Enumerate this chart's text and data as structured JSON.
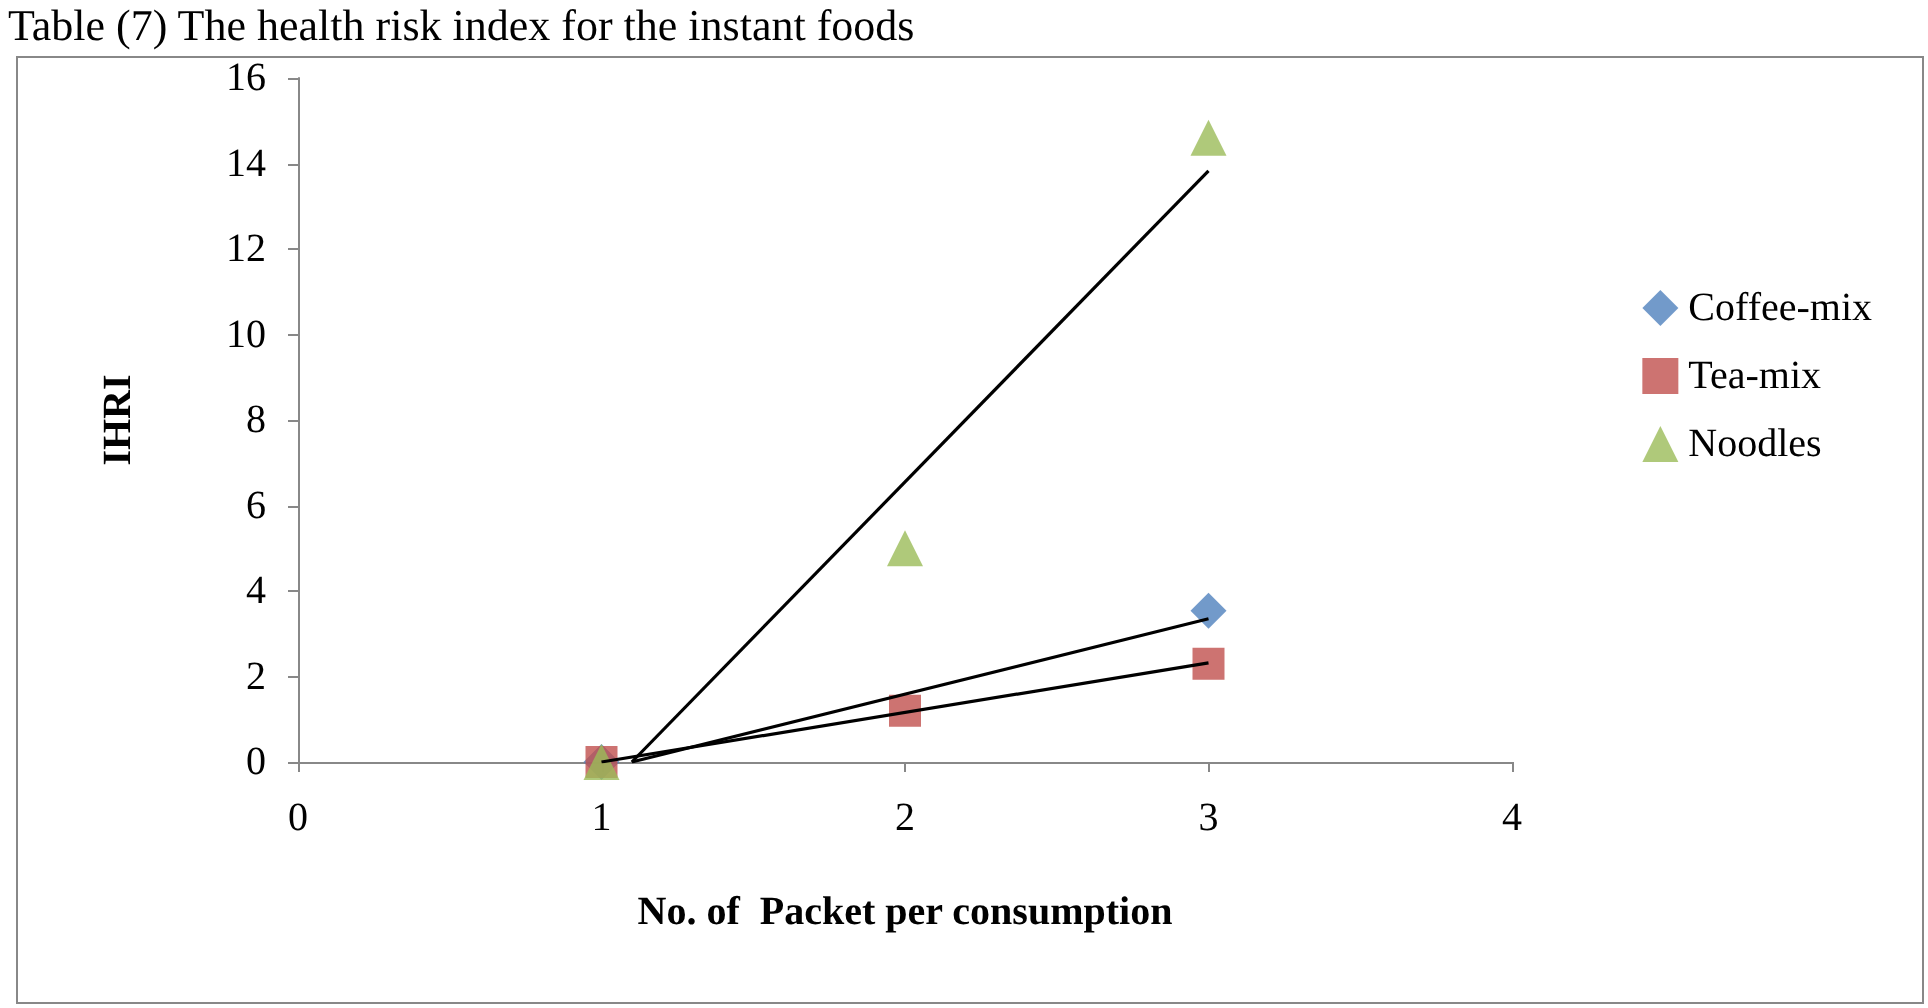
{
  "chart_data": {
    "type": "scatter",
    "title": "Table (7) The health risk index for the instant foods",
    "xlabel": "No. of  Packet per consumption",
    "ylabel": "IHRI",
    "series": [
      {
        "name": "Coffee-mix",
        "color": "#4f81bd",
        "marker": "diamond",
        "x": [
          1,
          2,
          3
        ],
        "values": [
          0,
          null,
          3.54
        ]
      },
      {
        "name": "Tea-mix",
        "color": "#c0504d",
        "marker": "square",
        "x": [
          1,
          2,
          3
        ],
        "values": [
          0,
          1.2,
          2.3
        ]
      },
      {
        "name": "Noodles",
        "color": "#9bbb59",
        "marker": "triangle",
        "x": [
          1,
          2,
          3
        ],
        "values": [
          0,
          5.0,
          14.6
        ]
      },
      {
        "type": "line",
        "color": "#000000",
        "marker": "none",
        "x": [
          1.1,
          3
        ],
        "values": [
          0,
          3.35
        ]
      },
      {
        "type": "line",
        "color": "#000000",
        "marker": "none",
        "x": [
          1,
          3
        ],
        "values": [
          0,
          2.32
        ]
      },
      {
        "type": "line",
        "color": "#000000",
        "marker": "none",
        "x": [
          1.1,
          3
        ],
        "values": [
          0,
          13.83
        ]
      }
    ],
    "xlim": [
      0,
      4
    ],
    "xticks": [
      0,
      1,
      2,
      3,
      4
    ],
    "ylim": [
      0,
      16
    ],
    "yticks": [
      0,
      2,
      4,
      6,
      8,
      10,
      12,
      14,
      16
    ],
    "grid": false,
    "legend": "right"
  }
}
